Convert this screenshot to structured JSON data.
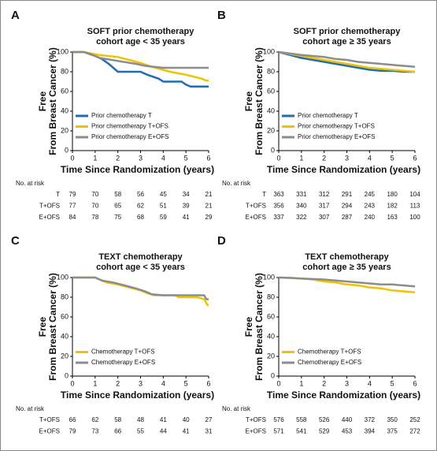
{
  "chart_data": [
    {
      "type": "line",
      "panel": "A",
      "title": [
        "SOFT prior chemotherapy",
        "cohort age < 35 years"
      ],
      "ylabel": [
        "Free",
        "From Breast Cancer (%)"
      ],
      "xlabel": "Time Since Randomization (years)",
      "xlim": [
        0,
        6
      ],
      "xticks": [
        0,
        1,
        2,
        3,
        4,
        5,
        6
      ],
      "ylim": [
        0,
        100
      ],
      "yticks": [
        0,
        20,
        40,
        60,
        80,
        100
      ],
      "legend": "lower left",
      "series": [
        {
          "name": "Prior chemotherapy T",
          "color": "#1f6db5",
          "x": [
            0,
            0.5,
            1,
            1.3,
            1.6,
            2,
            3,
            3.3,
            3.8,
            4,
            4.8,
            5,
            5.2,
            6
          ],
          "values": [
            100,
            100,
            96,
            93,
            88,
            80,
            80,
            77,
            73,
            70,
            70,
            67,
            65,
            65
          ]
        },
        {
          "name": "Prior chemotherapy T+OFS",
          "color": "#f2c200",
          "x": [
            0,
            0.5,
            1.2,
            2,
            2.5,
            3,
            3.5,
            4.3,
            5,
            5.7,
            5.9,
            6
          ],
          "values": [
            100,
            100,
            97,
            95,
            92,
            89,
            85,
            80,
            77,
            73,
            71,
            71
          ]
        },
        {
          "name": "Prior chemotherapy E+OFS",
          "color": "#8c8c8c",
          "x": [
            0,
            0.5,
            0.8,
            1.2,
            2,
            2.8,
            3.2,
            4,
            6
          ],
          "values": [
            100,
            100,
            98,
            94,
            91,
            88,
            86,
            84,
            84
          ]
        }
      ],
      "risk_table": {
        "title": "No. at risk",
        "rows": [
          {
            "label": "T",
            "values": [
              79,
              70,
              58,
              56,
              45,
              34,
              21
            ]
          },
          {
            "label": "T+OFS",
            "values": [
              77,
              70,
              65,
              62,
              51,
              39,
              21
            ]
          },
          {
            "label": "E+OFS",
            "values": [
              84,
              78,
              75,
              68,
              59,
              41,
              29
            ]
          }
        ]
      }
    },
    {
      "type": "line",
      "panel": "B",
      "title": [
        "SOFT prior chemotherapy",
        "cohort age ≥ 35 years"
      ],
      "ylabel": [
        "Free",
        "From Breast Cancer (%)"
      ],
      "xlabel": "Time Since Randomization (years)",
      "xlim": [
        0,
        6
      ],
      "xticks": [
        0,
        1,
        2,
        3,
        4,
        5,
        6
      ],
      "ylim": [
        0,
        100
      ],
      "yticks": [
        0,
        20,
        40,
        60,
        80,
        100
      ],
      "legend": "lower left",
      "series": [
        {
          "name": "Prior chemotherapy T",
          "color": "#1f6db5",
          "x": [
            0,
            0.5,
            1,
            1.5,
            2,
            2.5,
            3,
            3.5,
            4,
            4.5,
            5,
            5.5,
            6
          ],
          "values": [
            100,
            97,
            94,
            92,
            90,
            88,
            86,
            84,
            82,
            81,
            81,
            80,
            80
          ]
        },
        {
          "name": "Prior chemotherapy T+OFS",
          "color": "#f2c200",
          "x": [
            0,
            0.5,
            1,
            1.5,
            2,
            2.5,
            3,
            3.5,
            4,
            4.5,
            5,
            5.5,
            6
          ],
          "values": [
            100,
            98,
            96,
            94,
            92,
            90,
            88,
            86,
            84,
            83,
            82,
            81,
            80
          ]
        },
        {
          "name": "Prior chemotherapy E+OFS",
          "color": "#8c8c8c",
          "x": [
            0,
            0.5,
            1,
            1.5,
            2,
            2.5,
            3,
            3.5,
            4,
            4.5,
            5,
            5.5,
            6
          ],
          "values": [
            100,
            98.5,
            97,
            96,
            95,
            93,
            92,
            90,
            89,
            88,
            87,
            86,
            85
          ]
        }
      ],
      "risk_table": {
        "title": "No. at risk",
        "rows": [
          {
            "label": "T",
            "values": [
              363,
              331,
              312,
              291,
              245,
              180,
              104
            ]
          },
          {
            "label": "T+OFS",
            "values": [
              356,
              340,
              317,
              294,
              243,
              182,
              113
            ]
          },
          {
            "label": "E+OFS",
            "values": [
              337,
              322,
              307,
              287,
              240,
              163,
              100
            ]
          }
        ]
      }
    },
    {
      "type": "line",
      "panel": "C",
      "title": [
        "TEXT chemotherapy",
        "cohort age < 35 years"
      ],
      "ylabel": [
        "Free",
        "From Breast Cancer (%)"
      ],
      "xlabel": "Time Since Randomization (years)",
      "xlim": [
        0,
        6
      ],
      "xticks": [
        0,
        1,
        2,
        3,
        4,
        5,
        6
      ],
      "ylim": [
        0,
        100
      ],
      "yticks": [
        0,
        20,
        40,
        60,
        80,
        100
      ],
      "legend": "lower left",
      "series": [
        {
          "name": "Chemotherapy T+OFS",
          "color": "#f2c200",
          "x": [
            0,
            1,
            1.2,
            1.5,
            2,
            2.5,
            3,
            3.3,
            3.6,
            4.5,
            4.7,
            5.5,
            5.8,
            5.95,
            6
          ],
          "values": [
            100,
            100,
            98,
            95,
            93,
            90,
            87,
            84,
            82,
            82,
            80,
            80,
            78,
            72,
            72
          ]
        },
        {
          "name": "Chemotherapy E+OFS",
          "color": "#8c8c8c",
          "x": [
            0,
            1,
            1.3,
            1.8,
            2.3,
            2.8,
            3.2,
            3.5,
            4,
            5.8,
            5.9,
            6
          ],
          "values": [
            100,
            100,
            97,
            95,
            92,
            89,
            86,
            83,
            82,
            82,
            78,
            78
          ]
        }
      ],
      "risk_table": {
        "title": "No. at risk",
        "rows": [
          {
            "label": "T+OFS",
            "values": [
              66,
              62,
              58,
              48,
              41,
              40,
              27
            ]
          },
          {
            "label": "E+OFS",
            "values": [
              79,
              73,
              66,
              55,
              44,
              41,
              31
            ]
          }
        ]
      }
    },
    {
      "type": "line",
      "panel": "D",
      "title": [
        "TEXT chemotherapy",
        "cohort age ≥ 35 years"
      ],
      "ylabel": [
        "Free",
        "From Breast Cancer (%)"
      ],
      "xlabel": "Time Since Randomization (years)",
      "xlim": [
        0,
        6
      ],
      "xticks": [
        0,
        1,
        2,
        3,
        4,
        5,
        6
      ],
      "ylim": [
        0,
        100
      ],
      "yticks": [
        0,
        20,
        40,
        60,
        80,
        100
      ],
      "legend": "lower left",
      "series": [
        {
          "name": "Chemotherapy T+OFS",
          "color": "#f2c200",
          "x": [
            0,
            0.5,
            1,
            1.5,
            2,
            2.5,
            3,
            3.5,
            4,
            4.5,
            5,
            5.5,
            6
          ],
          "values": [
            100,
            99.5,
            99,
            98,
            96,
            95,
            93,
            92,
            90,
            89,
            87,
            86,
            85
          ]
        },
        {
          "name": "Chemotherapy E+OFS",
          "color": "#8c8c8c",
          "x": [
            0,
            0.5,
            1,
            1.5,
            2,
            2.5,
            3,
            3.5,
            4,
            4.5,
            5,
            5.5,
            6
          ],
          "values": [
            100,
            99.7,
            99,
            98.5,
            98,
            97,
            96,
            95,
            94,
            93,
            93,
            92,
            91
          ]
        }
      ],
      "risk_table": {
        "title": "No. at risk",
        "rows": [
          {
            "label": "T+OFS",
            "values": [
              576,
              558,
              526,
              440,
              372,
              350,
              252
            ]
          },
          {
            "label": "E+OFS",
            "values": [
              571,
              541,
              529,
              453,
              394,
              375,
              272
            ]
          }
        ]
      }
    }
  ]
}
